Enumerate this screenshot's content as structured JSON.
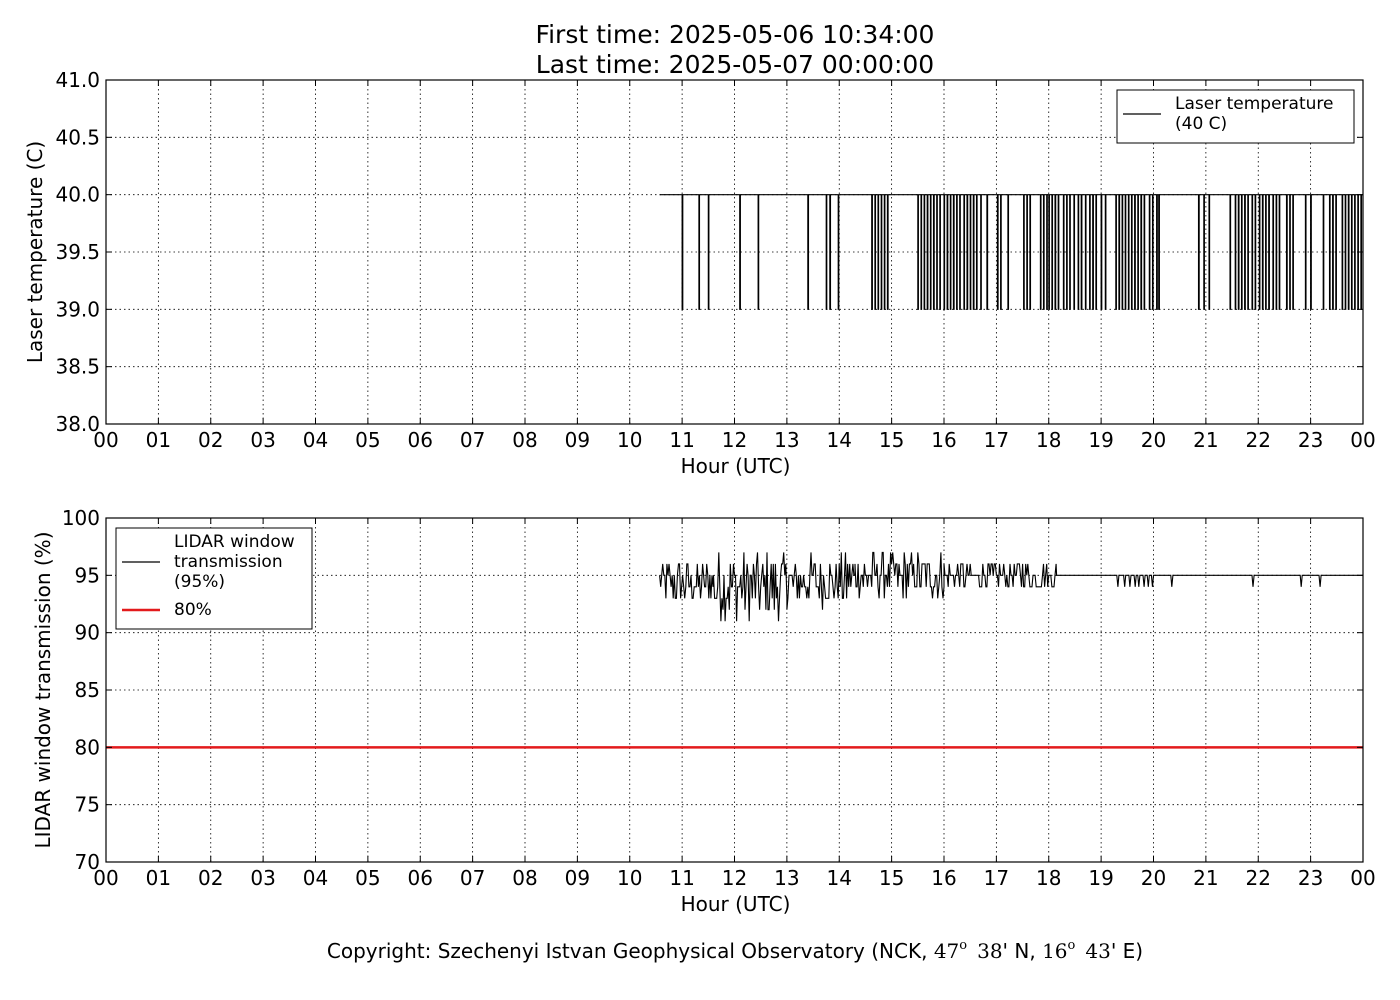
{
  "figure": {
    "title_line1": "First time: 2025-05-06 10:34:00",
    "title_line2": "Last time: 2025-05-07 00:00:00",
    "copyright": {
      "prefix": "Copyright: Szechenyi Istvan Geophysical Observatory (NCK, ",
      "lat_deg": "47",
      "lat_min": "38",
      "lat_suffix": "' N, ",
      "lon_deg": "16",
      "lon_min": "43",
      "lon_suffix": "' E)",
      "degree_mark": "o"
    }
  },
  "colors": {
    "series": "#000000",
    "threshold": "#e31a1c",
    "grid": "#000000"
  },
  "chart_data": [
    {
      "type": "line",
      "xlabel": "Hour (UTC)",
      "ylabel": "Laser temperature (C)",
      "x_ticks": [
        "00",
        "01",
        "02",
        "03",
        "04",
        "05",
        "06",
        "07",
        "08",
        "09",
        "10",
        "11",
        "12",
        "13",
        "14",
        "15",
        "16",
        "17",
        "18",
        "19",
        "20",
        "21",
        "22",
        "23",
        "00"
      ],
      "xlim": [
        0,
        24
      ],
      "ylim": [
        38.0,
        41.0
      ],
      "y_ticks": [
        "38.0",
        "38.5",
        "39.0",
        "39.5",
        "40.0",
        "40.5",
        "41.0"
      ],
      "grid": true,
      "legend_position": "top-right",
      "series": [
        {
          "name": "Laser temperature\n(40 C)",
          "base_value": 40.0,
          "x_start": 10.57,
          "x_end": 24.0,
          "drops_to": 39.0,
          "drops_at": [
            11.0,
            11.32,
            11.5,
            12.1,
            12.45,
            13.4,
            13.75,
            13.82,
            13.98,
            14.62,
            14.68,
            14.74,
            14.8,
            14.86,
            14.92,
            15.5,
            15.56,
            15.62,
            15.68,
            15.74,
            15.8,
            15.86,
            15.92,
            16.0,
            16.06,
            16.12,
            16.18,
            16.24,
            16.3,
            16.38,
            16.44,
            16.5,
            16.56,
            16.62,
            16.7,
            16.82,
            17.02,
            17.08,
            17.22,
            17.52,
            17.58,
            17.64,
            17.84,
            17.9,
            17.96,
            18.0,
            18.06,
            18.12,
            18.18,
            18.28,
            18.34,
            18.4,
            18.48,
            18.56,
            18.62,
            18.7,
            18.78,
            18.84,
            18.9,
            19.0,
            19.08,
            19.28,
            19.34,
            19.4,
            19.46,
            19.52,
            19.58,
            19.64,
            19.7,
            19.76,
            19.82,
            19.92,
            19.98,
            20.06,
            20.1,
            20.86,
            20.96,
            21.06,
            21.46,
            21.56,
            21.62,
            21.68,
            21.74,
            21.8,
            21.88,
            21.94,
            22.02,
            22.08,
            22.14,
            22.2,
            22.28,
            22.34,
            22.4,
            22.54,
            22.6,
            22.66,
            22.9,
            23.0,
            23.24,
            23.36,
            23.42,
            23.48,
            23.6,
            23.66,
            23.72,
            23.78,
            23.84,
            23.9,
            23.96
          ]
        }
      ]
    },
    {
      "type": "line",
      "xlabel": "Hour (UTC)",
      "ylabel": "LIDAR window transmission (%)",
      "x_ticks": [
        "00",
        "01",
        "02",
        "03",
        "04",
        "05",
        "06",
        "07",
        "08",
        "09",
        "10",
        "11",
        "12",
        "13",
        "14",
        "15",
        "16",
        "17",
        "18",
        "19",
        "20",
        "21",
        "22",
        "23",
        "00"
      ],
      "xlim": [
        0,
        24
      ],
      "ylim": [
        70,
        100
      ],
      "y_ticks": [
        "70",
        "75",
        "80",
        "85",
        "90",
        "95",
        "100"
      ],
      "grid": true,
      "legend_position": "top-left",
      "series": [
        {
          "name": "LIDAR window\ntransmission\n(95%)",
          "x_start": 10.57,
          "x_end": 24.0,
          "noisy_segments": [
            {
              "x_from": 10.57,
              "x_to": 11.6,
              "center": 94.3,
              "min": 92.0,
              "max": 97.0
            },
            {
              "x_from": 11.6,
              "x_to": 13.0,
              "center": 94.0,
              "min": 89.0,
              "max": 97.0
            },
            {
              "x_from": 13.0,
              "x_to": 14.3,
              "center": 94.5,
              "min": 91.0,
              "max": 97.0
            },
            {
              "x_from": 14.3,
              "x_to": 16.0,
              "center": 95.0,
              "min": 92.0,
              "max": 97.0
            },
            {
              "x_from": 16.0,
              "x_to": 18.15,
              "center": 95.0,
              "min": 93.0,
              "max": 96.0
            }
          ],
          "steady_value": 95.0,
          "steady_dips": [
            {
              "x": 19.32,
              "value": 94.0
            },
            {
              "x": 19.45,
              "value": 94.0
            },
            {
              "x": 19.55,
              "value": 94.0
            },
            {
              "x": 19.65,
              "value": 94.0
            },
            {
              "x": 19.72,
              "value": 94.0
            },
            {
              "x": 19.82,
              "value": 94.0
            },
            {
              "x": 19.9,
              "value": 94.0
            },
            {
              "x": 19.98,
              "value": 94.0
            },
            {
              "x": 20.35,
              "value": 94.0
            },
            {
              "x": 21.9,
              "value": 94.0
            },
            {
              "x": 22.82,
              "value": 94.0
            },
            {
              "x": 23.18,
              "value": 94.0
            }
          ]
        },
        {
          "name": "80%",
          "constant": 80,
          "x_start": 0,
          "x_end": 24
        }
      ]
    }
  ]
}
